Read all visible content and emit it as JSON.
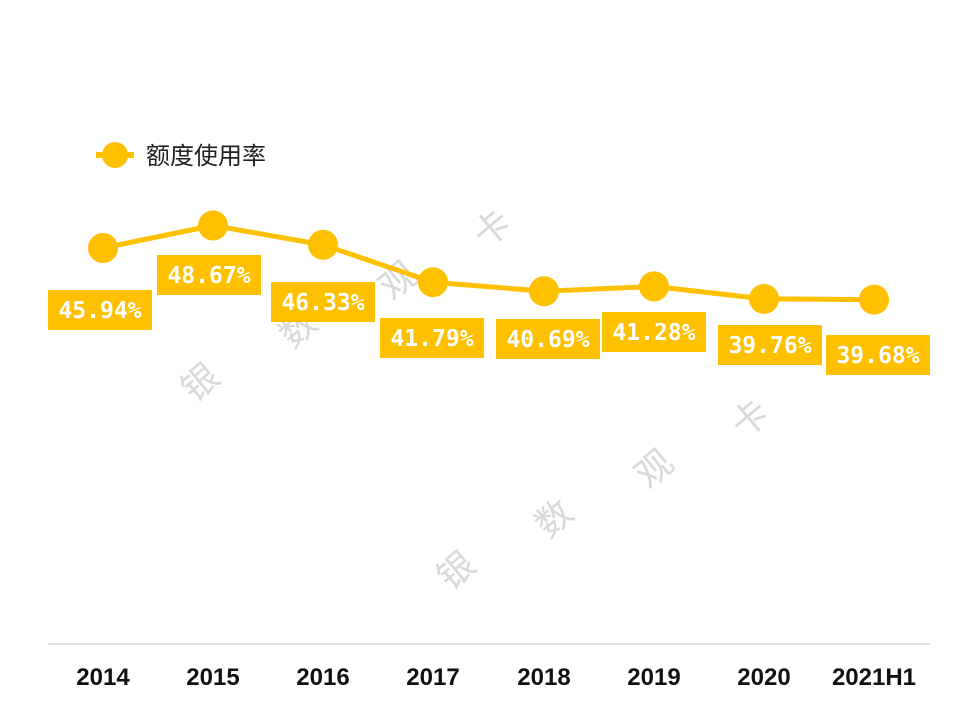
{
  "colors": {
    "series": "#FFC000",
    "axis": "#d9d9d9",
    "watermark": "#d9d9d9"
  },
  "watermark": [
    "银",
    "数",
    "观",
    "卡"
  ],
  "chart_data": {
    "type": "line",
    "categories": [
      "2014",
      "2015",
      "2016",
      "2017",
      "2018",
      "2019",
      "2020",
      "2021H1"
    ],
    "series": [
      {
        "name": "额度使用率",
        "values": [
          45.94,
          48.67,
          46.33,
          41.79,
          40.69,
          41.28,
          39.76,
          39.68
        ],
        "labels": [
          "45.94%",
          "48.67%",
          "46.33%",
          "41.79%",
          "40.69%",
          "41.28%",
          "39.76%",
          "39.68%"
        ]
      }
    ],
    "legend": "top-left",
    "grid": false,
    "markers": "circle",
    "data_labels": true
  }
}
